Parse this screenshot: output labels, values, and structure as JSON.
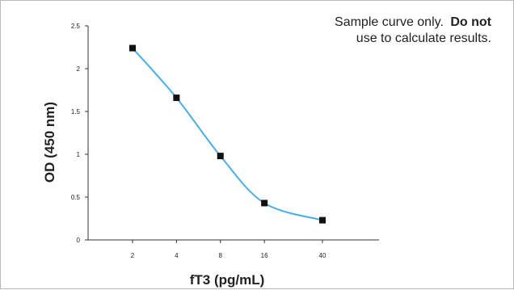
{
  "chart_data": {
    "type": "line",
    "xlabel": "fT3 (pg/mL)",
    "ylabel": "OD (450 nm)",
    "x_scale": "log2",
    "x_ticks": [
      2,
      4,
      8,
      16,
      40
    ],
    "x_tick_labels": [
      "2",
      "4",
      "8",
      "16",
      "40"
    ],
    "y_ticks": [
      0,
      0.5,
      1,
      1.5,
      2,
      2.5
    ],
    "y_tick_labels": [
      "0",
      "0.5",
      "1",
      "1.5",
      "2",
      "2.5"
    ],
    "ylim": [
      0,
      2.5
    ],
    "grid": false,
    "smooth": true,
    "series": [
      {
        "x": [
          2,
          4,
          8,
          16,
          40
        ],
        "y": [
          2.24,
          1.66,
          0.98,
          0.43,
          0.23
        ]
      }
    ],
    "line_color": "#4aaee6",
    "marker_color": "#111111",
    "annotation": {
      "line1": "Sample curve only.",
      "line1_bold": "Do not",
      "line2": "use to calculate results."
    }
  }
}
